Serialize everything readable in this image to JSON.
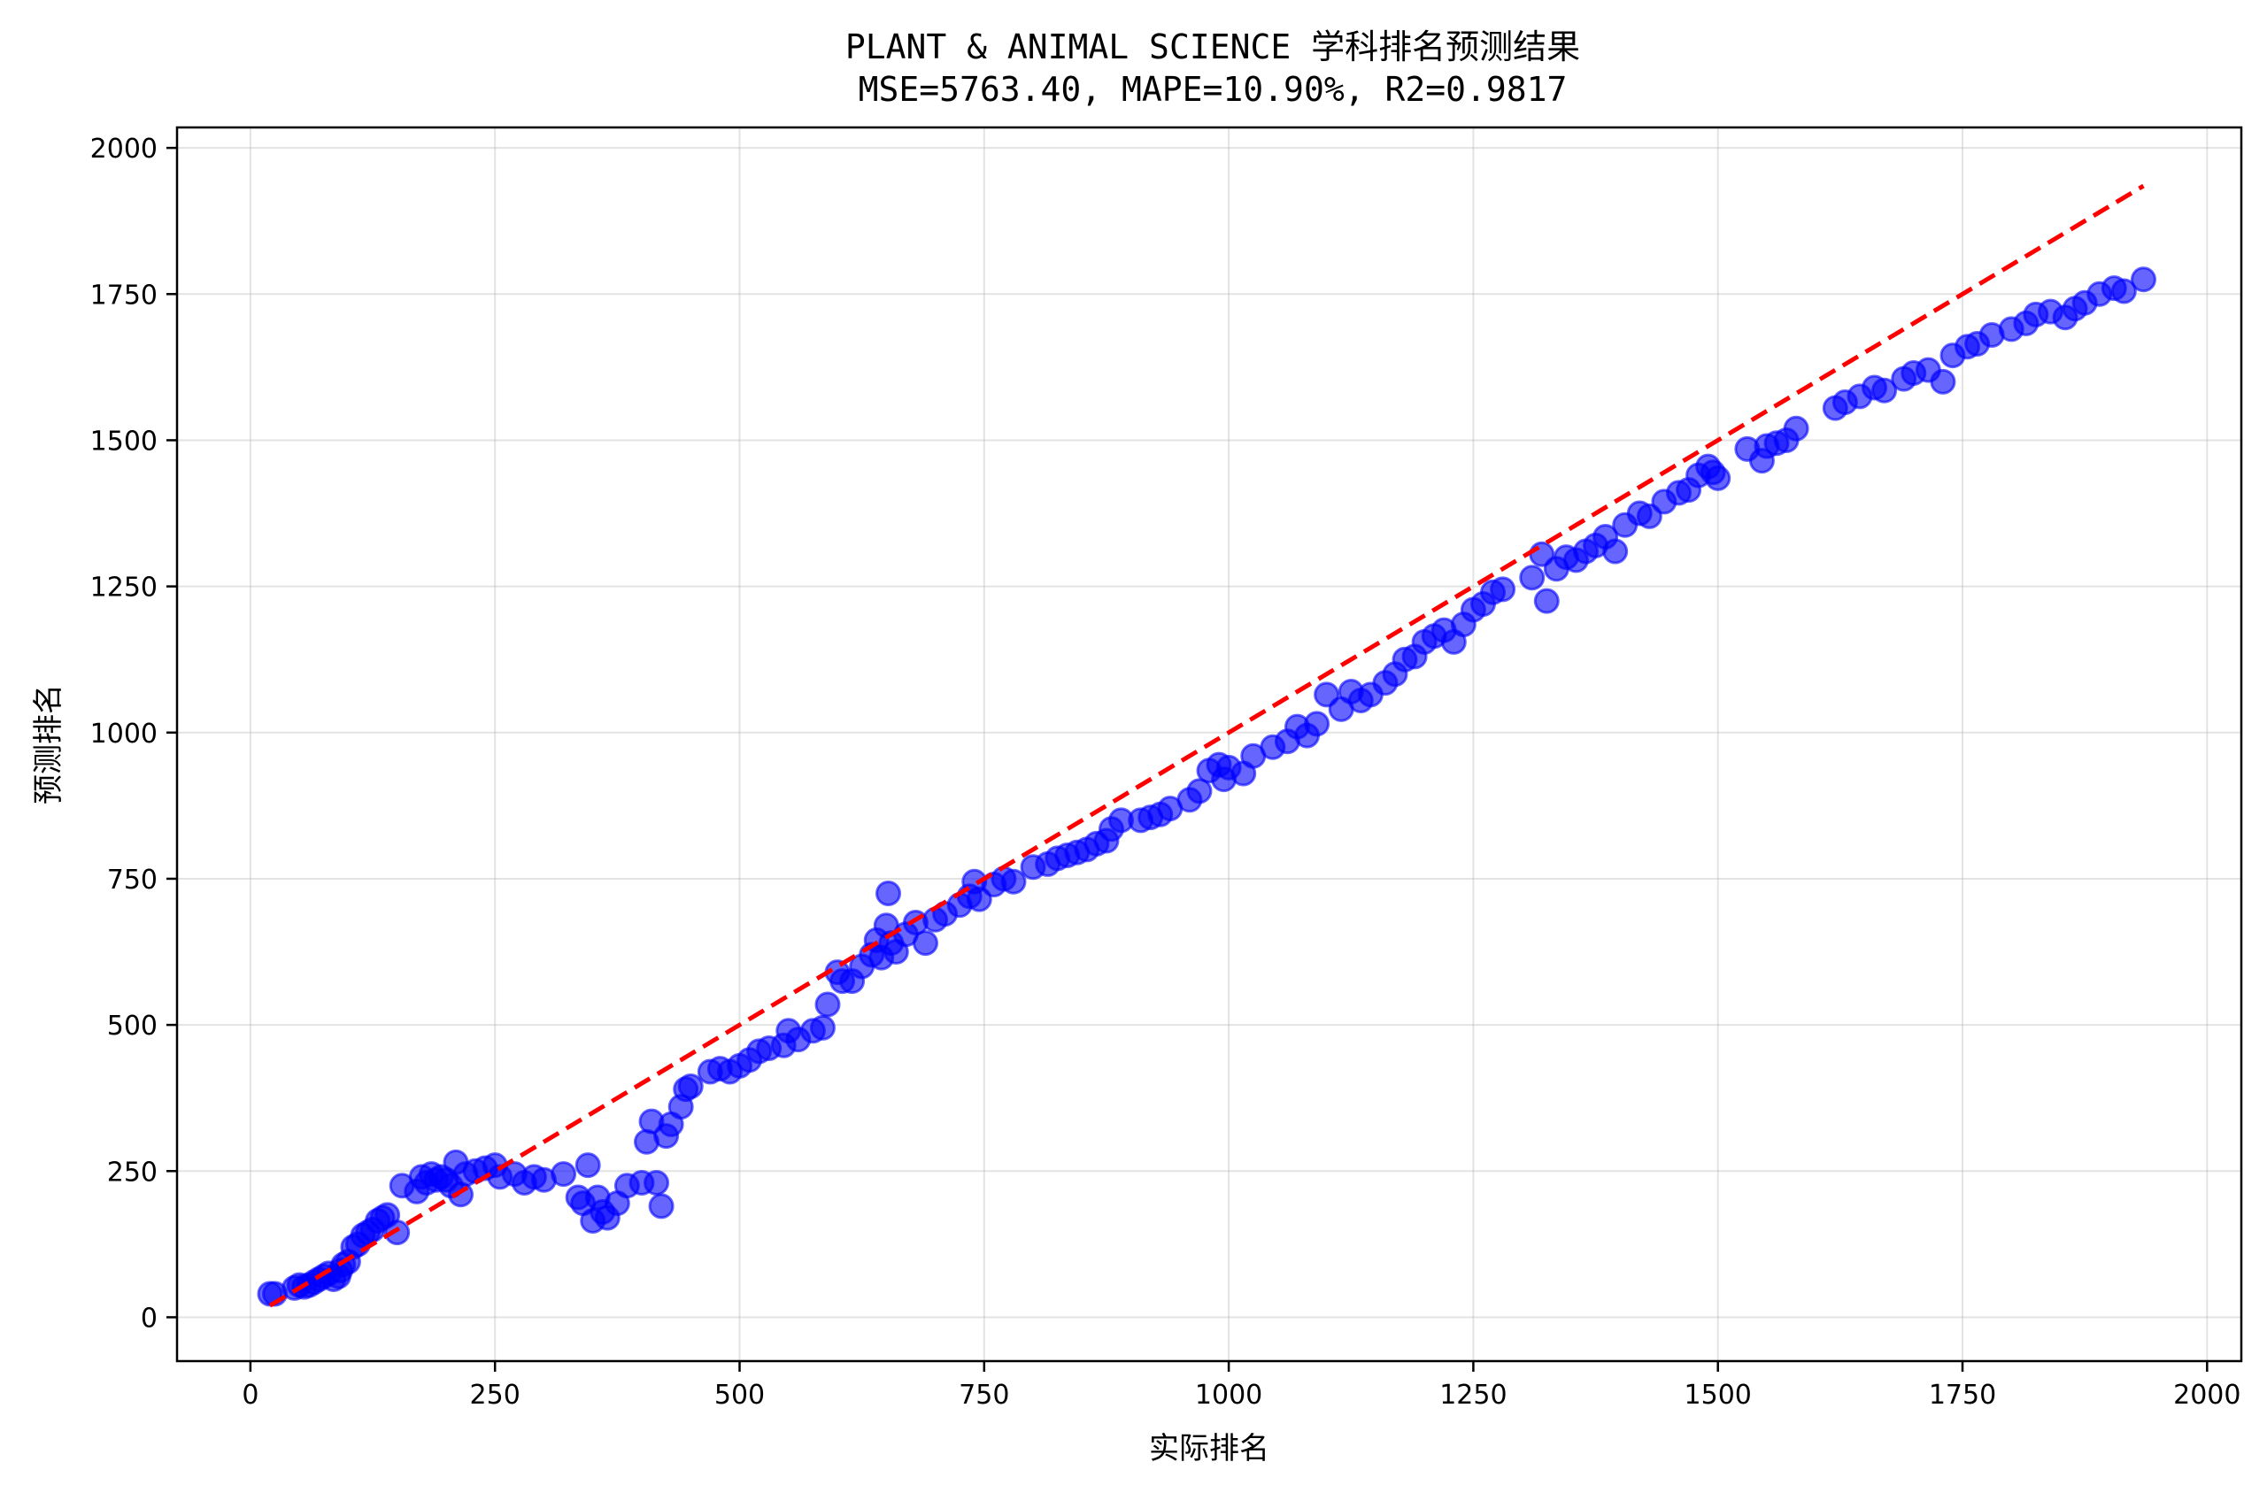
{
  "chart_data": {
    "type": "scatter",
    "title": "PLANT & ANIMAL SCIENCE 学科排名预测结果",
    "subtitle": "MSE=5763.40, MAPE=10.90%, R2=0.9817",
    "xlabel": "实际排名",
    "ylabel": "预测排名",
    "xlim": [
      -75,
      2035
    ],
    "ylim": [
      -75,
      2035
    ],
    "xticks": [
      0,
      250,
      500,
      750,
      1000,
      1250,
      1500,
      1750,
      2000
    ],
    "yticks": [
      0,
      250,
      500,
      750,
      1000,
      1250,
      1500,
      1750,
      2000
    ],
    "grid": true,
    "point_color": "#0000ff",
    "point_alpha": 0.6,
    "reference_line": {
      "x": [
        20,
        1935
      ],
      "y": [
        20,
        1935
      ],
      "color": "#ff0000",
      "style": "dashed"
    },
    "points": [
      [
        20,
        40
      ],
      [
        25,
        40
      ],
      [
        45,
        50
      ],
      [
        50,
        55
      ],
      [
        55,
        52
      ],
      [
        60,
        55
      ],
      [
        65,
        60
      ],
      [
        70,
        65
      ],
      [
        75,
        70
      ],
      [
        80,
        75
      ],
      [
        85,
        65
      ],
      [
        90,
        70
      ],
      [
        92,
        80
      ],
      [
        95,
        90
      ],
      [
        100,
        95
      ],
      [
        105,
        120
      ],
      [
        110,
        125
      ],
      [
        115,
        140
      ],
      [
        120,
        145
      ],
      [
        125,
        150
      ],
      [
        130,
        165
      ],
      [
        135,
        170
      ],
      [
        140,
        175
      ],
      [
        150,
        145
      ],
      [
        155,
        225
      ],
      [
        170,
        215
      ],
      [
        175,
        240
      ],
      [
        180,
        230
      ],
      [
        185,
        245
      ],
      [
        190,
        235
      ],
      [
        195,
        240
      ],
      [
        200,
        235
      ],
      [
        205,
        225
      ],
      [
        210,
        265
      ],
      [
        215,
        210
      ],
      [
        220,
        245
      ],
      [
        230,
        250
      ],
      [
        240,
        255
      ],
      [
        250,
        260
      ],
      [
        255,
        240
      ],
      [
        270,
        245
      ],
      [
        280,
        230
      ],
      [
        290,
        240
      ],
      [
        300,
        235
      ],
      [
        320,
        245
      ],
      [
        335,
        205
      ],
      [
        340,
        195
      ],
      [
        345,
        260
      ],
      [
        350,
        165
      ],
      [
        355,
        205
      ],
      [
        360,
        180
      ],
      [
        365,
        170
      ],
      [
        375,
        195
      ],
      [
        385,
        225
      ],
      [
        400,
        230
      ],
      [
        405,
        300
      ],
      [
        410,
        335
      ],
      [
        415,
        230
      ],
      [
        420,
        190
      ],
      [
        425,
        310
      ],
      [
        430,
        330
      ],
      [
        440,
        360
      ],
      [
        445,
        390
      ],
      [
        450,
        395
      ],
      [
        470,
        420
      ],
      [
        480,
        425
      ],
      [
        490,
        420
      ],
      [
        500,
        430
      ],
      [
        510,
        440
      ],
      [
        520,
        455
      ],
      [
        530,
        460
      ],
      [
        545,
        465
      ],
      [
        550,
        490
      ],
      [
        560,
        475
      ],
      [
        575,
        490
      ],
      [
        585,
        495
      ],
      [
        590,
        535
      ],
      [
        600,
        590
      ],
      [
        605,
        575
      ],
      [
        615,
        575
      ],
      [
        625,
        600
      ],
      [
        635,
        620
      ],
      [
        640,
        645
      ],
      [
        645,
        615
      ],
      [
        650,
        670
      ],
      [
        652,
        725
      ],
      [
        655,
        640
      ],
      [
        660,
        625
      ],
      [
        670,
        655
      ],
      [
        680,
        675
      ],
      [
        690,
        640
      ],
      [
        700,
        680
      ],
      [
        710,
        690
      ],
      [
        725,
        705
      ],
      [
        735,
        720
      ],
      [
        740,
        745
      ],
      [
        745,
        715
      ],
      [
        760,
        740
      ],
      [
        770,
        750
      ],
      [
        780,
        745
      ],
      [
        800,
        770
      ],
      [
        815,
        775
      ],
      [
        825,
        785
      ],
      [
        835,
        790
      ],
      [
        845,
        795
      ],
      [
        855,
        800
      ],
      [
        865,
        810
      ],
      [
        875,
        815
      ],
      [
        880,
        835
      ],
      [
        890,
        850
      ],
      [
        910,
        850
      ],
      [
        920,
        855
      ],
      [
        930,
        860
      ],
      [
        940,
        870
      ],
      [
        960,
        885
      ],
      [
        970,
        900
      ],
      [
        980,
        935
      ],
      [
        990,
        945
      ],
      [
        995,
        920
      ],
      [
        1000,
        940
      ],
      [
        1015,
        930
      ],
      [
        1025,
        960
      ],
      [
        1045,
        975
      ],
      [
        1060,
        985
      ],
      [
        1070,
        1010
      ],
      [
        1080,
        995
      ],
      [
        1090,
        1015
      ],
      [
        1100,
        1065
      ],
      [
        1115,
        1040
      ],
      [
        1125,
        1070
      ],
      [
        1135,
        1055
      ],
      [
        1145,
        1065
      ],
      [
        1160,
        1085
      ],
      [
        1170,
        1100
      ],
      [
        1180,
        1125
      ],
      [
        1190,
        1130
      ],
      [
        1200,
        1155
      ],
      [
        1210,
        1165
      ],
      [
        1220,
        1175
      ],
      [
        1230,
        1155
      ],
      [
        1240,
        1185
      ],
      [
        1250,
        1210
      ],
      [
        1260,
        1220
      ],
      [
        1270,
        1240
      ],
      [
        1280,
        1245
      ],
      [
        1310,
        1265
      ],
      [
        1320,
        1305
      ],
      [
        1325,
        1225
      ],
      [
        1335,
        1280
      ],
      [
        1345,
        1300
      ],
      [
        1355,
        1295
      ],
      [
        1365,
        1310
      ],
      [
        1375,
        1320
      ],
      [
        1385,
        1335
      ],
      [
        1395,
        1310
      ],
      [
        1405,
        1355
      ],
      [
        1420,
        1375
      ],
      [
        1430,
        1370
      ],
      [
        1445,
        1395
      ],
      [
        1460,
        1410
      ],
      [
        1470,
        1415
      ],
      [
        1480,
        1440
      ],
      [
        1490,
        1455
      ],
      [
        1495,
        1445
      ],
      [
        1500,
        1435
      ],
      [
        1530,
        1485
      ],
      [
        1545,
        1465
      ],
      [
        1550,
        1490
      ],
      [
        1560,
        1495
      ],
      [
        1570,
        1500
      ],
      [
        1580,
        1520
      ],
      [
        1620,
        1555
      ],
      [
        1630,
        1565
      ],
      [
        1645,
        1575
      ],
      [
        1660,
        1590
      ],
      [
        1670,
        1585
      ],
      [
        1690,
        1605
      ],
      [
        1700,
        1615
      ],
      [
        1715,
        1620
      ],
      [
        1730,
        1600
      ],
      [
        1740,
        1645
      ],
      [
        1755,
        1660
      ],
      [
        1765,
        1665
      ],
      [
        1780,
        1680
      ],
      [
        1800,
        1690
      ],
      [
        1815,
        1700
      ],
      [
        1825,
        1715
      ],
      [
        1840,
        1720
      ],
      [
        1855,
        1710
      ],
      [
        1865,
        1725
      ],
      [
        1875,
        1735
      ],
      [
        1890,
        1750
      ],
      [
        1905,
        1760
      ],
      [
        1915,
        1755
      ],
      [
        1935,
        1775
      ]
    ]
  }
}
